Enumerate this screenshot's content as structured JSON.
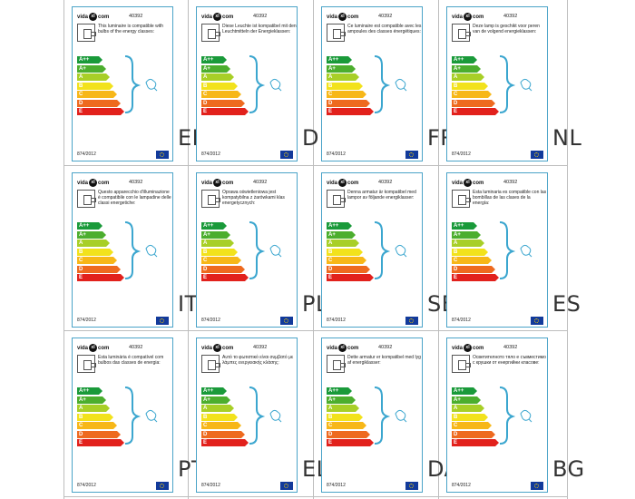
{
  "logo": {
    "text_left": "vida",
    "circle": "xl",
    "text_right": "com"
  },
  "product_code": "40392",
  "energy_classes": [
    {
      "label": "A++",
      "color": "#1a9a3a"
    },
    {
      "label": "A+",
      "color": "#4cae2e"
    },
    {
      "label": "A",
      "color": "#a8cf27"
    },
    {
      "label": "B",
      "color": "#f2e21c"
    },
    {
      "label": "C",
      "color": "#f7b718"
    },
    {
      "label": "D",
      "color": "#ee6a1f"
    },
    {
      "label": "E",
      "color": "#e2211c"
    }
  ],
  "regulation": "874/2012",
  "labels": [
    {
      "lang": "EN",
      "text": "This luminaire is compatible with bulbs of the energy classes:"
    },
    {
      "lang": "DE",
      "text": "Diese Leuchte ist kompatibel mit den Leuchtmitteln der Energieklassen:"
    },
    {
      "lang": "FR",
      "text": "Ce luminaire est compatible avec les ampoules des classes énergétiques:"
    },
    {
      "lang": "NL",
      "text": "Deze lamp is geschikt voor peren van de volgend energieklassen:"
    },
    {
      "lang": "IT",
      "text": "Questo apparecchio d'illuminazione è compatibile con le lampadine delle classi energetiche:"
    },
    {
      "lang": "PL",
      "text": "Oprawa oświetleniowa jest kompatybilna z żarówkami klas energetycznych:"
    },
    {
      "lang": "SE",
      "text": "Denna armatur är kompatibel med lampor av följande energiklasser:"
    },
    {
      "lang": "ES",
      "text": "Esta luminaria es compatible con las bombillas de las clases de la energía:"
    },
    {
      "lang": "PT",
      "text": "Esta luminária é compatível com bulbos das classes de energia:"
    },
    {
      "lang": "EL",
      "text": "Αυτό το φωτιστικό είναι συμβατό με λάμπες ενεργειακής κλάσης:"
    },
    {
      "lang": "DA",
      "text": "Dette armatur er kompatibel med lyg af energiklasser:"
    },
    {
      "lang": "BG",
      "text": "Осветителното тяло е съвместимо с крушки от енергийни класове:"
    }
  ]
}
